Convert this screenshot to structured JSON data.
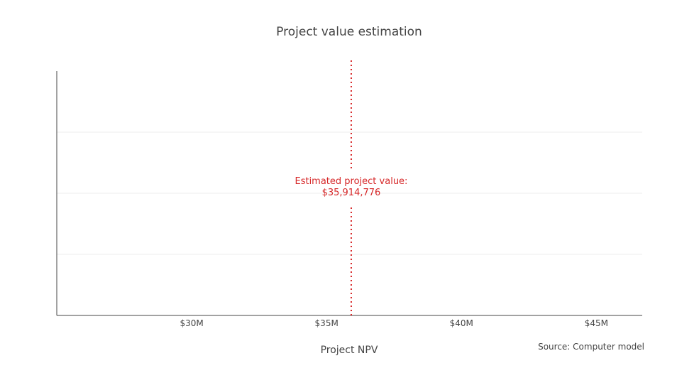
{
  "chart_data": {
    "type": "line",
    "title": "Project value estimation",
    "xlabel": "Project NPV",
    "ylabel": "",
    "xlim": [
      25000000,
      46700000
    ],
    "ylim": [
      0,
      4
    ],
    "x_ticks": [
      {
        "value": 30000000,
        "label": "$30M"
      },
      {
        "value": 35000000,
        "label": "$35M"
      },
      {
        "value": 40000000,
        "label": "$40M"
      },
      {
        "value": 45000000,
        "label": "$45M"
      }
    ],
    "y_gridlines": [
      1,
      2,
      3
    ],
    "grid": true,
    "reference_line": {
      "x": 35914776,
      "style": "dotted",
      "color": "#d62728"
    },
    "annotation": {
      "line1": "Estimated project value:",
      "line2": "$35,914,776",
      "color": "#d62728"
    },
    "source": "Source: Computer model",
    "colors": {
      "text": "#444444",
      "axis": "#444444",
      "grid": "#eeeeee",
      "accent": "#d62728"
    }
  }
}
